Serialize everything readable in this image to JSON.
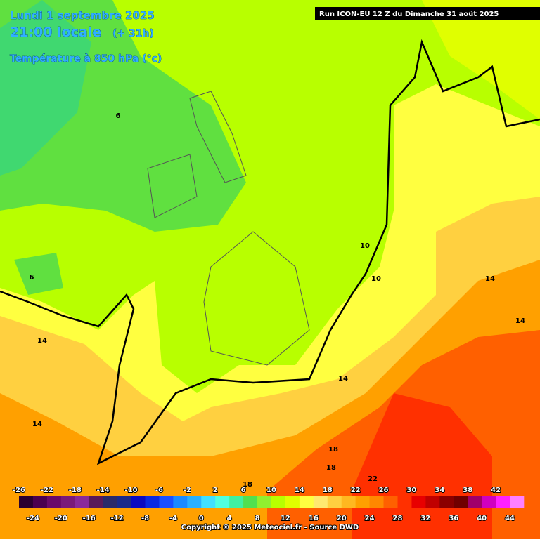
{
  "header": {
    "date": "Lundi 1 septembre 2025",
    "time": "21:00 locale",
    "lead": "(+ 31h)",
    "field": "Température à 850 hPa (°c)",
    "run": "Run ICON-EU 12 Z du Dimanche 31 août 2025"
  },
  "map": {
    "contour_labels": [
      "6",
      "6",
      "14",
      "14",
      "10",
      "10",
      "14",
      "14",
      "14",
      "18",
      "18",
      "22",
      "18"
    ]
  },
  "colorbar": {
    "levels": [
      -26,
      -24,
      -22,
      -20,
      -18,
      -16,
      -14,
      -12,
      -10,
      -8,
      -6,
      -4,
      -2,
      0,
      2,
      4,
      6,
      8,
      10,
      12,
      14,
      16,
      18,
      20,
      22,
      24,
      26,
      28,
      30,
      32,
      34,
      36,
      38,
      40,
      42,
      44
    ],
    "colors": [
      "#2a0030",
      "#4b0050",
      "#6a0a6a",
      "#7a1a7a",
      "#8a2a9a",
      "#5a1a5a",
      "#2a2a6a",
      "#1a2a8a",
      "#0a0ac0",
      "#0a2ae0",
      "#1a50ff",
      "#1a8aff",
      "#2ab0ff",
      "#40e0ff",
      "#50ffe0",
      "#40f0a0",
      "#50e050",
      "#90f030",
      "#b8ff00",
      "#e0ff00",
      "#ffff40",
      "#ffe870",
      "#ffd040",
      "#ffb820",
      "#ffa000",
      "#ff8800",
      "#ff6000",
      "#ff3000",
      "#e80000",
      "#c00000",
      "#8a0000",
      "#700000",
      "#a0006a",
      "#d000c0",
      "#ff20ff",
      "#ff80ff"
    ]
  },
  "footer": {
    "copyright": "Copyright © 2025 Meteociel.fr - Source DWD"
  }
}
